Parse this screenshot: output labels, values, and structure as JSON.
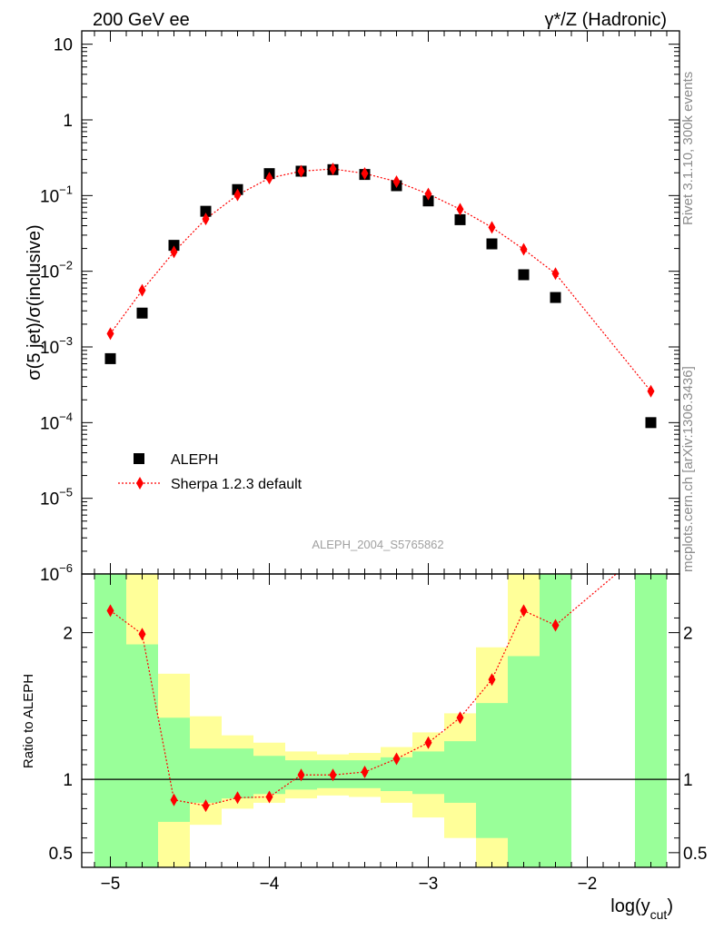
{
  "header": {
    "left": "200 GeV ee",
    "right_prefix": "γ*/Z",
    "right_suffix": " (Hadronic)"
  },
  "side_text": {
    "rivet": "Rivet 3.1.10,  300k events",
    "mcplots": "mcplots.cern.ch [arXiv:1306.3436]"
  },
  "analysis_id": "ALEPH_2004_S5765862",
  "chart_data": [
    {
      "type": "scatter",
      "panel": "main",
      "ylabel": "σ(5 jet)/σ(inclusive)",
      "yscale": "log",
      "ylim": [
        1e-06,
        15
      ],
      "xlim": [
        -5.18,
        -1.42
      ],
      "y_tick_labels": [
        {
          "value": 10,
          "base": "10",
          "exp": ""
        },
        {
          "value": 1,
          "base": "1",
          "exp": ""
        },
        {
          "value": 0.1,
          "base": "10",
          "exp": "−1"
        },
        {
          "value": 0.01,
          "base": "10",
          "exp": "−2"
        },
        {
          "value": 0.001,
          "base": "10",
          "exp": "−3"
        },
        {
          "value": 0.0001,
          "base": "10",
          "exp": "−4"
        },
        {
          "value": 1e-05,
          "base": "10",
          "exp": "−5"
        },
        {
          "value": 1e-06,
          "base": "10",
          "exp": "−6"
        }
      ],
      "legend_position": "bottom-left",
      "series": [
        {
          "name": "ALEPH",
          "marker": "square",
          "color": "#000000",
          "x": [
            -5.0,
            -4.8,
            -4.6,
            -4.4,
            -4.2,
            -4.0,
            -3.8,
            -3.6,
            -3.4,
            -3.2,
            -3.0,
            -2.8,
            -2.6,
            -2.4,
            -2.2,
            -1.6
          ],
          "y": [
            0.0007,
            0.0028,
            0.022,
            0.062,
            0.12,
            0.195,
            0.21,
            0.22,
            0.19,
            0.135,
            0.085,
            0.048,
            0.023,
            0.009,
            0.0045,
            0.0001
          ]
        },
        {
          "name": "Sherpa 1.2.3 default",
          "marker": "diamond",
          "color": "#ff0000",
          "linestyle": "dotted",
          "x": [
            -5.0,
            -4.8,
            -4.6,
            -4.4,
            -4.2,
            -4.0,
            -3.8,
            -3.6,
            -3.4,
            -3.2,
            -3.0,
            -2.8,
            -2.6,
            -2.4,
            -2.2,
            -1.6
          ],
          "y": [
            0.0015,
            0.0056,
            0.018,
            0.049,
            0.102,
            0.17,
            0.21,
            0.225,
            0.196,
            0.153,
            0.105,
            0.066,
            0.038,
            0.0195,
            0.0093,
            0.00026
          ]
        }
      ]
    },
    {
      "type": "line",
      "panel": "ratio",
      "ylabel": "Ratio to ALEPH",
      "xlabel_base": "log(y",
      "xlabel_sub": "cut",
      "xlabel_close": ")",
      "ylim": [
        0.4,
        2.4
      ],
      "xlim": [
        -5.18,
        -1.42
      ],
      "x_ticks": [
        -5,
        -4,
        -3,
        -2
      ],
      "x_tick_labels": [
        "−5",
        "−4",
        "−3",
        "−2"
      ],
      "y_ticks": [
        0.5,
        1,
        2
      ],
      "y_tick_labels": [
        "0.5",
        "1",
        "2"
      ],
      "reference_line": 1,
      "bands": [
        {
          "xlo": -5.1,
          "xhi": -4.9,
          "y_lo": 0.4,
          "y_hi": 2.4,
          "inner_lo": 0.4,
          "inner_hi": 2.4
        },
        {
          "xlo": -4.9,
          "xhi": -4.7,
          "y_lo": 0.4,
          "y_hi": 2.4,
          "inner_lo": 0.4,
          "inner_hi": 1.92
        },
        {
          "xlo": -4.7,
          "xhi": -4.5,
          "y_lo": 0.4,
          "y_hi": 1.72,
          "inner_lo": 0.71,
          "inner_hi": 1.42
        },
        {
          "xlo": -4.5,
          "xhi": -4.3,
          "y_lo": 0.69,
          "y_hi": 1.43,
          "inner_lo": 0.84,
          "inner_hi": 1.21
        },
        {
          "xlo": -4.3,
          "xhi": -4.1,
          "y_lo": 0.8,
          "y_hi": 1.3,
          "inner_lo": 0.87,
          "inner_hi": 1.21
        },
        {
          "xlo": -4.1,
          "xhi": -3.9,
          "y_lo": 0.84,
          "y_hi": 1.25,
          "inner_lo": 0.9,
          "inner_hi": 1.16
        },
        {
          "xlo": -3.9,
          "xhi": -3.7,
          "y_lo": 0.87,
          "y_hi": 1.19,
          "inner_lo": 0.93,
          "inner_hi": 1.13
        },
        {
          "xlo": -3.7,
          "xhi": -3.5,
          "y_lo": 0.89,
          "y_hi": 1.17,
          "inner_lo": 0.94,
          "inner_hi": 1.13
        },
        {
          "xlo": -3.5,
          "xhi": -3.3,
          "y_lo": 0.88,
          "y_hi": 1.18,
          "inner_lo": 0.94,
          "inner_hi": 1.13
        },
        {
          "xlo": -3.3,
          "xhi": -3.1,
          "y_lo": 0.84,
          "y_hi": 1.22,
          "inner_lo": 0.92,
          "inner_hi": 1.15
        },
        {
          "xlo": -3.1,
          "xhi": -2.9,
          "y_lo": 0.74,
          "y_hi": 1.32,
          "inner_lo": 0.9,
          "inner_hi": 1.19
        },
        {
          "xlo": -2.9,
          "xhi": -2.7,
          "y_lo": 0.6,
          "y_hi": 1.45,
          "inner_lo": 0.84,
          "inner_hi": 1.26
        },
        {
          "xlo": -2.7,
          "xhi": -2.5,
          "y_lo": 0.4,
          "y_hi": 1.9,
          "inner_lo": 0.6,
          "inner_hi": 1.52
        },
        {
          "xlo": -2.5,
          "xhi": -2.3,
          "y_lo": 0.4,
          "y_hi": 2.4,
          "inner_lo": 0.4,
          "inner_hi": 1.84
        },
        {
          "xlo": -2.3,
          "xhi": -2.1,
          "y_lo": 0.4,
          "y_hi": 2.4,
          "inner_lo": 0.4,
          "inner_hi": 2.4
        },
        {
          "xlo": -1.7,
          "xhi": -1.5,
          "y_lo": 0.4,
          "y_hi": 2.4,
          "inner_lo": 0.4,
          "inner_hi": 2.4
        }
      ],
      "series": [
        {
          "name": "Sherpa 1.2.3 default",
          "color": "#ff0000",
          "x": [
            -5.0,
            -4.8,
            -4.6,
            -4.4,
            -4.2,
            -4.0,
            -3.8,
            -3.6,
            -3.4,
            -3.2,
            -3.0,
            -2.8,
            -2.6,
            -2.4,
            -2.2,
            -1.6
          ],
          "y": [
            2.15,
            1.99,
            0.86,
            0.82,
            0.875,
            0.88,
            1.03,
            1.03,
            1.05,
            1.14,
            1.25,
            1.42,
            1.68,
            2.15,
            2.05,
            2.6
          ]
        }
      ]
    }
  ]
}
